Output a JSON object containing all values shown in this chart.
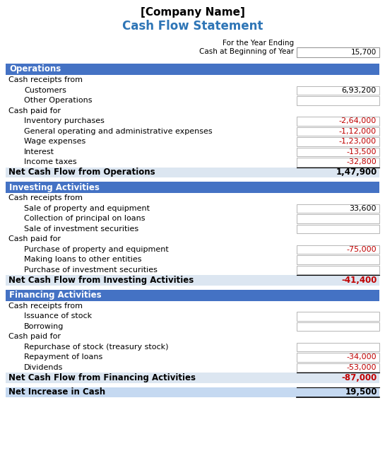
{
  "title_company": "[Company Name]",
  "title_main": "Cash Flow Statement",
  "header_label1": "For the Year Ending",
  "header_label2": "Cash at Beginning of Year",
  "header_value": "15,700",
  "section_bg": "#4472C4",
  "section_text_color": "#FFFFFF",
  "net_bg": "#DCE6F1",
  "net_final_bg": "#C5D9F1",
  "red_color": "#C00000",
  "blue_title": "#2E75B6",
  "rows": [
    {
      "type": "section",
      "label": "Operations",
      "value": "",
      "indent": 0,
      "red": false
    },
    {
      "type": "subhead",
      "label": "Cash receipts from",
      "value": "",
      "indent": 0,
      "red": false
    },
    {
      "type": "item_box",
      "label": "Customers",
      "value": "6,93,200",
      "indent": 1,
      "red": false
    },
    {
      "type": "item_box",
      "label": "Other Operations",
      "value": "",
      "indent": 1,
      "red": false
    },
    {
      "type": "subhead",
      "label": "Cash paid for",
      "value": "",
      "indent": 0,
      "red": false
    },
    {
      "type": "item_box",
      "label": "Inventory purchases",
      "value": "-2,64,000",
      "indent": 1,
      "red": true
    },
    {
      "type": "item_box",
      "label": "General operating and administrative expenses",
      "value": "-1,12,000",
      "indent": 1,
      "red": true
    },
    {
      "type": "item_box",
      "label": "Wage expenses",
      "value": "-1,23,000",
      "indent": 1,
      "red": true
    },
    {
      "type": "item_box",
      "label": "Interest",
      "value": "-13,500",
      "indent": 1,
      "red": true
    },
    {
      "type": "item_box",
      "label": "Income taxes",
      "value": "-32,800",
      "indent": 1,
      "red": true,
      "last_in_group": true
    },
    {
      "type": "net",
      "label": "Net Cash Flow from Operations",
      "value": "1,47,900",
      "indent": 0,
      "red": false
    },
    {
      "type": "spacer",
      "label": "",
      "value": "",
      "indent": 0,
      "red": false
    },
    {
      "type": "section",
      "label": "Investing Activities",
      "value": "",
      "indent": 0,
      "red": false
    },
    {
      "type": "subhead",
      "label": "Cash receipts from",
      "value": "",
      "indent": 0,
      "red": false
    },
    {
      "type": "item_box",
      "label": "Sale of property and equipment",
      "value": "33,600",
      "indent": 1,
      "red": false
    },
    {
      "type": "item_box",
      "label": "Collection of principal on loans",
      "value": "",
      "indent": 1,
      "red": false
    },
    {
      "type": "item_box",
      "label": "Sale of investment securities",
      "value": "",
      "indent": 1,
      "red": false
    },
    {
      "type": "subhead",
      "label": "Cash paid for",
      "value": "",
      "indent": 0,
      "red": false
    },
    {
      "type": "item_box",
      "label": "Purchase of property and equipment",
      "value": "-75,000",
      "indent": 1,
      "red": true
    },
    {
      "type": "item_box",
      "label": "Making loans to other entities",
      "value": "",
      "indent": 1,
      "red": false
    },
    {
      "type": "item_box",
      "label": "Purchase of investment securities",
      "value": "",
      "indent": 1,
      "red": false,
      "last_in_group": true
    },
    {
      "type": "net",
      "label": "Net Cash Flow from Investing Activities",
      "value": "-41,400",
      "indent": 0,
      "red": true
    },
    {
      "type": "spacer",
      "label": "",
      "value": "",
      "indent": 0,
      "red": false
    },
    {
      "type": "section",
      "label": "Financing Activities",
      "value": "",
      "indent": 0,
      "red": false
    },
    {
      "type": "subhead",
      "label": "Cash receipts from",
      "value": "",
      "indent": 0,
      "red": false
    },
    {
      "type": "item_box",
      "label": "Issuance of stock",
      "value": "",
      "indent": 1,
      "red": false
    },
    {
      "type": "item_box",
      "label": "Borrowing",
      "value": "",
      "indent": 1,
      "red": false
    },
    {
      "type": "subhead",
      "label": "Cash paid for",
      "value": "",
      "indent": 0,
      "red": false
    },
    {
      "type": "item_box",
      "label": "Repurchase of stock (treasury stock)",
      "value": "",
      "indent": 1,
      "red": false
    },
    {
      "type": "item_box",
      "label": "Repayment of loans",
      "value": "-34,000",
      "indent": 1,
      "red": true
    },
    {
      "type": "item_box",
      "label": "Dividends",
      "value": "-53,000",
      "indent": 1,
      "red": true,
      "last_in_group": true
    },
    {
      "type": "net",
      "label": "Net Cash Flow from Financing Activities",
      "value": "-87,000",
      "indent": 0,
      "red": true
    },
    {
      "type": "spacer",
      "label": "",
      "value": "",
      "indent": 0,
      "red": false
    },
    {
      "type": "net_final",
      "label": "Net Increase in Cash",
      "value": "19,500",
      "indent": 0,
      "red": false
    }
  ],
  "figw": 5.45,
  "figh": 6.38,
  "dpi": 100
}
